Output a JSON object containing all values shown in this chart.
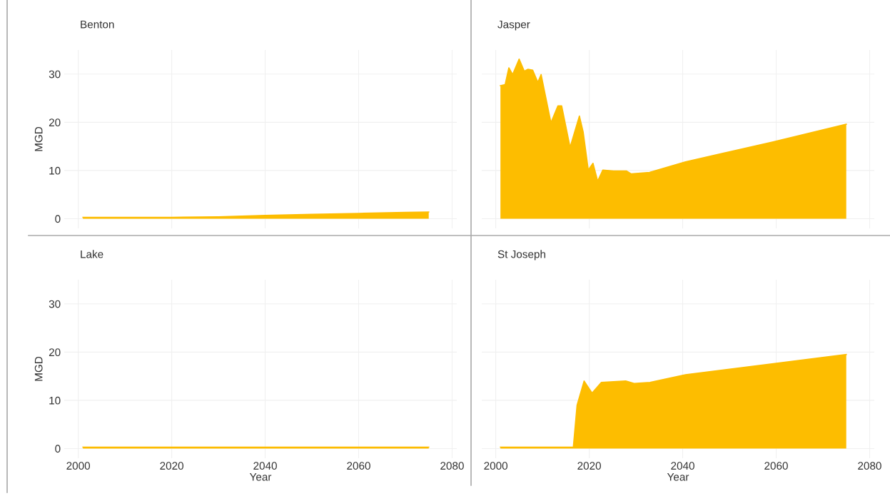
{
  "chart_data": [
    {
      "type": "area",
      "title": "Benton",
      "ylabel": "MGD",
      "color": "#fdbd00",
      "grid": true,
      "tick_labels": "y",
      "xlim": [
        1997,
        2081
      ],
      "ylim": [
        -2,
        35
      ],
      "xticks": [
        2000,
        2020,
        2040,
        2060,
        2080
      ],
      "yticks": [
        0,
        10,
        20,
        30
      ],
      "x": [
        2001,
        2010,
        2020,
        2030,
        2040,
        2050,
        2060,
        2070,
        2075
      ],
      "values": [
        0.3,
        0.3,
        0.3,
        0.4,
        0.7,
        0.9,
        1.1,
        1.3,
        1.4
      ]
    },
    {
      "type": "area",
      "title": "Jasper",
      "color": "#fdbd00",
      "grid": true,
      "tick_labels": false,
      "xlim": [
        1997,
        2081
      ],
      "ylim": [
        -2,
        35
      ],
      "xticks": [
        2000,
        2020,
        2040,
        2060,
        2080
      ],
      "yticks": [
        0,
        10,
        20,
        30
      ],
      "x": [
        2001,
        2002,
        2002.8,
        2003.6,
        2005,
        2006.1,
        2006.9,
        2007.9,
        2009,
        2009.7,
        2011.8,
        2013.3,
        2014.1,
        2015.9,
        2017.9,
        2018.7,
        2019.8,
        2020.8,
        2021.8,
        2022.9,
        2025.2,
        2028,
        2029,
        2032.9,
        2040.6,
        2059.2,
        2075
      ],
      "values": [
        27.6,
        27.8,
        31.3,
        29.9,
        33.1,
        30.6,
        31.0,
        30.8,
        28.3,
        29.9,
        19.9,
        23.4,
        23.4,
        14.8,
        21.3,
        18.0,
        10.1,
        11.5,
        7.8,
        10.1,
        9.9,
        9.9,
        9.3,
        9.6,
        11.8,
        15.9,
        19.6
      ]
    },
    {
      "type": "area",
      "title": "Lake",
      "xlabel": "Year",
      "ylabel": "MGD",
      "color": "#fdbd00",
      "grid": true,
      "xlim": [
        1997,
        2081
      ],
      "ylim": [
        -2,
        35
      ],
      "xticks": [
        2000,
        2020,
        2040,
        2060,
        2080
      ],
      "yticks": [
        0,
        10,
        20,
        30
      ],
      "x": [
        2001,
        2075
      ],
      "values": [
        0.3,
        0.3
      ]
    },
    {
      "type": "area",
      "title": "St Joseph",
      "xlabel": "Year",
      "color": "#fdbd00",
      "grid": true,
      "tick_labels": "x",
      "xlim": [
        1997,
        2081
      ],
      "ylim": [
        -2,
        35
      ],
      "xticks": [
        2000,
        2020,
        2040,
        2060,
        2080
      ],
      "yticks": [
        0,
        10,
        20,
        30
      ],
      "x": [
        2001,
        2016.6,
        2017.4,
        2018.9,
        2020.6,
        2022.6,
        2027.8,
        2029.6,
        2033,
        2040.6,
        2075
      ],
      "values": [
        0.3,
        0.3,
        9.0,
        14.0,
        11.5,
        13.7,
        14.0,
        13.5,
        13.7,
        15.3,
        19.5
      ]
    }
  ]
}
